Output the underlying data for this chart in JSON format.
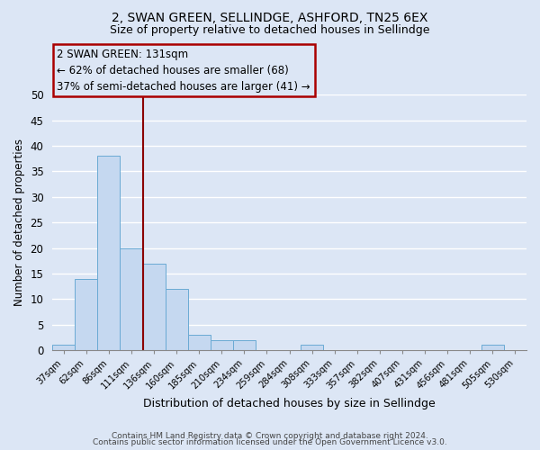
{
  "title": "2, SWAN GREEN, SELLINDGE, ASHFORD, TN25 6EX",
  "subtitle": "Size of property relative to detached houses in Sellindge",
  "xlabel": "Distribution of detached houses by size in Sellindge",
  "ylabel": "Number of detached properties",
  "bar_labels": [
    "37sqm",
    "62sqm",
    "86sqm",
    "111sqm",
    "136sqm",
    "160sqm",
    "185sqm",
    "210sqm",
    "234sqm",
    "259sqm",
    "284sqm",
    "308sqm",
    "333sqm",
    "357sqm",
    "382sqm",
    "407sqm",
    "431sqm",
    "456sqm",
    "481sqm",
    "505sqm",
    "530sqm"
  ],
  "bar_values": [
    1,
    14,
    38,
    20,
    17,
    12,
    3,
    2,
    2,
    0,
    0,
    1,
    0,
    0,
    0,
    0,
    0,
    0,
    0,
    1,
    0
  ],
  "bar_color": "#c5d8f0",
  "bar_edge_color": "#6aaad4",
  "marker_label": "2 SWAN GREEN: 131sqm",
  "annotation_line1": "← 62% of detached houses are smaller (68)",
  "annotation_line2": "37% of semi-detached houses are larger (41) →",
  "vline_color": "#8b0000",
  "vline_x": 3.5,
  "ylim": [
    0,
    50
  ],
  "yticks": [
    0,
    5,
    10,
    15,
    20,
    25,
    30,
    35,
    40,
    45,
    50
  ],
  "footer_line1": "Contains HM Land Registry data © Crown copyright and database right 2024.",
  "footer_line2": "Contains public sector information licensed under the Open Government Licence v3.0.",
  "background_color": "#dce6f5",
  "plot_bg_color": "#dce6f5",
  "grid_color": "#ffffff",
  "box_edge_color": "#aa0000",
  "title_fontsize": 10,
  "subtitle_fontsize": 9,
  "figsize": [
    6.0,
    5.0
  ],
  "dpi": 100
}
